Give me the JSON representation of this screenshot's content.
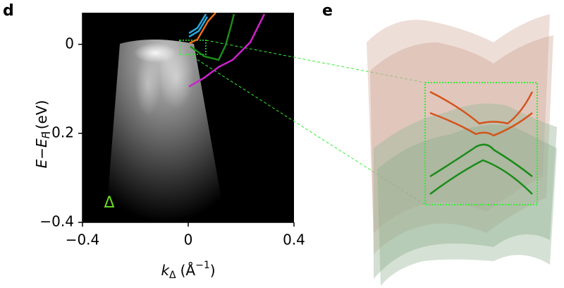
{
  "chart_data": {
    "type": "image",
    "panel_label": "d",
    "ylabel": {
      "main": "E−E",
      "sub": "F",
      "unit": "(eV)"
    },
    "xlabel": {
      "main": "k",
      "sub": "Δ",
      "unit": "(Å",
      "sup": "−1",
      "close": ")"
    },
    "annotation": "Δ",
    "xlim": [
      -0.4,
      0.4
    ],
    "ylim": [
      -0.4,
      0.071
    ],
    "xticks": [
      {
        "value": -0.4,
        "label": "−0.4"
      },
      0,
      0.4
    ],
    "yticks": [
      0,
      {
        "value": -0.2,
        "label": "−0.2"
      },
      {
        "value": -0.4,
        "label": "−0.4"
      }
    ],
    "series": [
      {
        "color": "#29a8e0",
        "x": [
          0.003,
          0.035,
          0.067
        ],
        "values": [
          0.025,
          0.037,
          0.068
        ]
      },
      {
        "color": "#29a8e0",
        "x": [
          0.003,
          0.04,
          0.072
        ],
        "values": [
          0.017,
          0.03,
          0.062
        ]
      },
      {
        "color": "#e8701a",
        "x": [
          0.003,
          0.035,
          0.075,
          0.104
        ],
        "values": [
          0.002,
          0.011,
          0.052,
          0.071
        ]
      },
      {
        "color": "#1a8c1a",
        "x": [
          0.008,
          0.061,
          0.115,
          0.141,
          0.163,
          0.173
        ],
        "values": [
          -0.005,
          -0.027,
          -0.035,
          -0.003,
          0.044,
          0.068
        ]
      },
      {
        "color": "#cc22cc",
        "x": [
          0.003,
          0.061,
          0.115,
          0.168,
          0.235,
          0.288
        ],
        "values": [
          -0.095,
          -0.075,
          -0.051,
          -0.035,
          0.005,
          0.068
        ]
      }
    ]
  },
  "schematic": {
    "panel_label": "e"
  }
}
